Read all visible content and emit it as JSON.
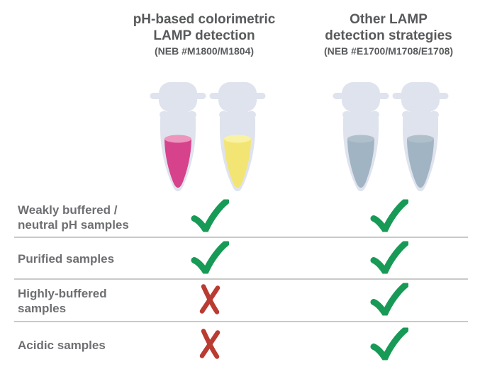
{
  "figure": {
    "columns": [
      {
        "title": "pH-based colorimetric\nLAMP detection",
        "subtitle": "(NEB #M1800/M1804)",
        "tubes": [
          {
            "name": "pink-reaction-tube",
            "liquid": "#d7428c",
            "surface": "#ec95bd"
          },
          {
            "name": "yellow-reaction-tube",
            "liquid": "#f3e573",
            "surface": "#f9f2a3"
          }
        ]
      },
      {
        "title": "Other LAMP\ndetection strategies",
        "subtitle": "(NEB #E1700/M1708/E1708)",
        "tubes": [
          {
            "name": "gray-reaction-tube",
            "liquid": "#a1b4c3",
            "surface": "#b0c0cb"
          },
          {
            "name": "gray-reaction-tube",
            "liquid": "#a1b4c3",
            "surface": "#b0c0cb"
          }
        ]
      }
    ],
    "rows": [
      {
        "label": "Weakly buffered /\nneutral pH samples",
        "marks": [
          "check",
          "check"
        ]
      },
      {
        "label": "Purified samples",
        "marks": [
          "check",
          "check"
        ]
      },
      {
        "label": "Highly-buffered\nsamples",
        "marks": [
          "cross",
          "check"
        ]
      },
      {
        "label": "Acidic samples",
        "marks": [
          "cross",
          "check"
        ]
      }
    ],
    "colors": {
      "check": "#189a57",
      "cross": "#b93b32",
      "tube_body": "#dfe3ee",
      "header_text": "#58595b",
      "label_text": "#6e6f72",
      "divider": "#c9c9c9",
      "background": "#ffffff"
    }
  }
}
